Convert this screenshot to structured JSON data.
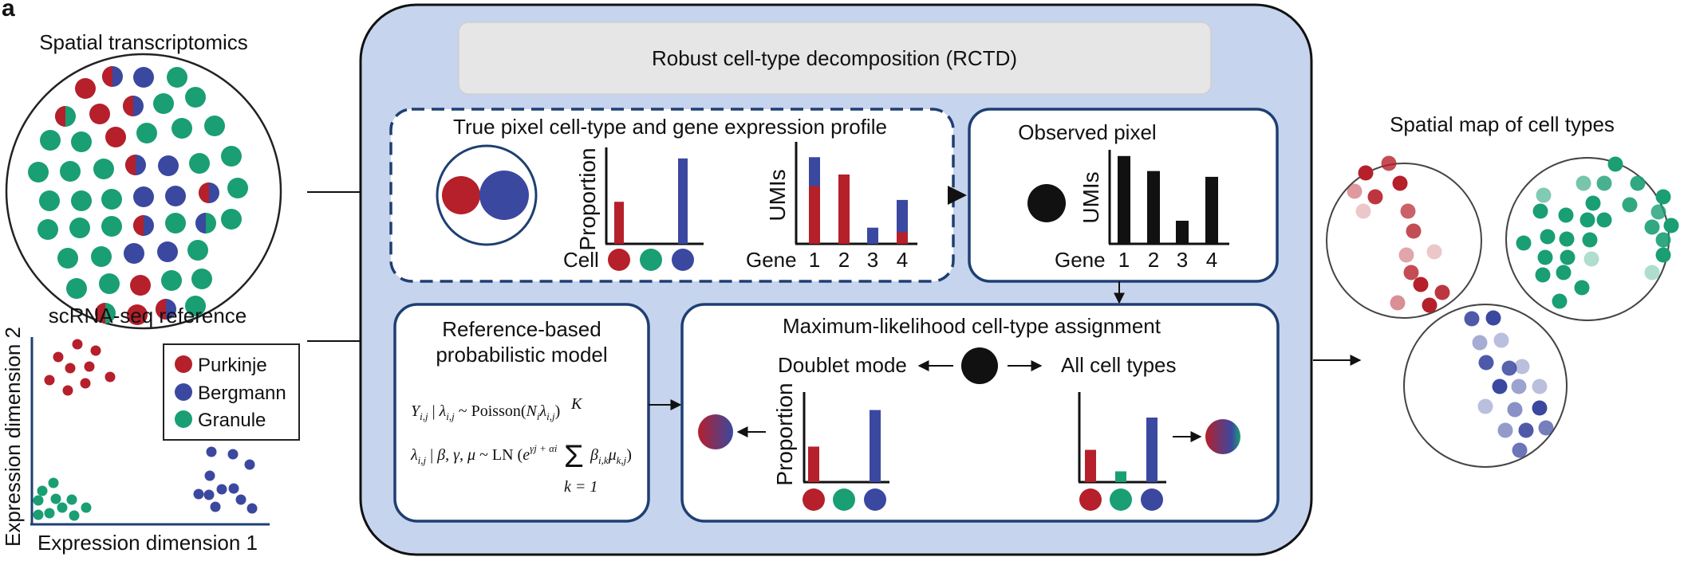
{
  "panel_letter": "a",
  "colors": {
    "purkinje": "#b5202b",
    "bergmann": "#3b48a0",
    "granule": "#1a9e74",
    "panel_bg": "#c6d4ee",
    "box_border": "#1e3f72",
    "title_box": "#e6e6e6"
  },
  "spatial": {
    "title": "Spatial transcriptomics"
  },
  "scrna": {
    "title": "scRNA-seq reference",
    "xlabel": "Expression dimension 1",
    "ylabel": "Expression dimension 2",
    "legend": [
      "Purkinje",
      "Bergmann",
      "Granule"
    ]
  },
  "rctd": {
    "title": "Robust cell-type decomposition (RCTD)"
  },
  "true_pixel": {
    "title": "True pixel cell-type and gene expression profile",
    "proportion_label": "Proportion",
    "cell_label": "Cell",
    "umis_label": "UMIs",
    "gene_label": "Gene",
    "gene_ticks": [
      "1",
      "2",
      "3",
      "4"
    ]
  },
  "observed": {
    "title": "Observed pixel",
    "umis_label": "UMIs",
    "gene_label": "Gene",
    "gene_ticks": [
      "1",
      "2",
      "3",
      "4"
    ]
  },
  "reference": {
    "title_line1": "Reference-based",
    "title_line2": "probabilistic model",
    "eq1": "Y_{i,j} | λ_{i,j} ~ Poisson(N_i λ_{i,j})",
    "eq2": "λ_{i,j} | β, γ, μ ~ LN (e^{γj + αi} Σ_{k=1}^{K} β_{i,k} μ_{k,j})"
  },
  "ml": {
    "title": "Maximum-likelihood cell-type assignment",
    "doublet_label": "Doublet mode",
    "all_label": "All cell types",
    "proportion_label": "Proportion"
  },
  "spatial_map": {
    "title": "Spatial map of cell types"
  },
  "chart_data": [
    {
      "type": "bar",
      "name": "true-pixel-proportion",
      "categories": [
        "Purkinje",
        "Granule",
        "Bergmann"
      ],
      "values": [
        0.33,
        0,
        0.67
      ],
      "ylabel": "Proportion",
      "xlabel": "Cell"
    },
    {
      "type": "bar",
      "name": "true-pixel-umis",
      "categories": [
        "1",
        "2",
        "3",
        "4"
      ],
      "series": [
        {
          "name": "Purkinje",
          "values": [
            5,
            6,
            0,
            1
          ]
        },
        {
          "name": "Bergmann",
          "values": [
            2.5,
            0,
            1.4,
            2.8
          ]
        }
      ],
      "ylabel": "UMIs",
      "xlabel": "Gene"
    },
    {
      "type": "bar",
      "name": "observed-pixel-umis",
      "categories": [
        "1",
        "2",
        "3",
        "4"
      ],
      "values": [
        7.6,
        6.3,
        2.0,
        5.8
      ],
      "ylabel": "UMIs",
      "xlabel": "Gene"
    },
    {
      "type": "bar",
      "name": "doublet-mode-proportion",
      "categories": [
        "Purkinje",
        "Granule",
        "Bergmann"
      ],
      "values": [
        0.33,
        0,
        0.67
      ],
      "ylabel": "Proportion"
    },
    {
      "type": "bar",
      "name": "all-cell-types-proportion",
      "categories": [
        "Purkinje",
        "Granule",
        "Bergmann"
      ],
      "values": [
        0.3,
        0.1,
        0.6
      ]
    }
  ]
}
